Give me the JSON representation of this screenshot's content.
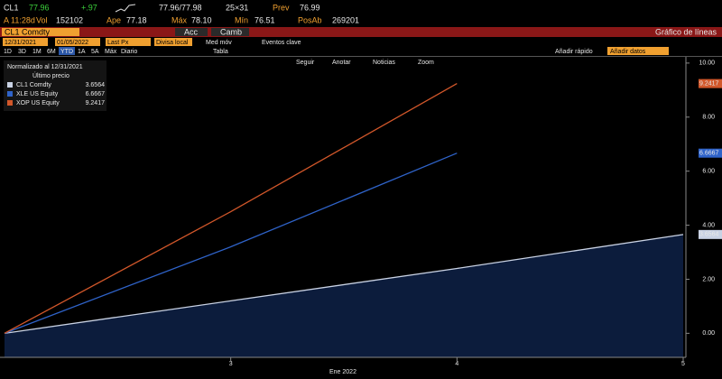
{
  "quote": {
    "ticker": "CL1",
    "last": "77.96",
    "change": "+.97",
    "bid_ask": "77.96/77.98",
    "size": "25×31",
    "prev_label": "Prev",
    "prev": "76.99",
    "time": "A 11:28d",
    "vol_label": "Vol",
    "vol": "152102",
    "open_label": "Ape",
    "open": "77.18",
    "high_label": "Máx",
    "high": "78.10",
    "low_label": "Mín",
    "low": "76.51",
    "oi_label": "PosAb",
    "oi": "269201"
  },
  "toolbar": {
    "security": "CL1 Comdty",
    "actions": "Acc",
    "change": "Camb",
    "view": "Gráfico de líneas",
    "start": "12/31/2021",
    "end": "01/05/2022",
    "field": "Last Px",
    "currency": "Divisa local",
    "moving_avg": "Med móv",
    "events": "Eventos clave",
    "periods": [
      "1D",
      "3D",
      "1M",
      "6M",
      "YTD",
      "1A",
      "5A",
      "Máx",
      "Diario"
    ],
    "table": "Tabla",
    "quick_add": "Añadir rápido",
    "add_data": "Añadir datos",
    "tools": [
      "Seguir",
      "Anotar",
      "Noticias",
      "Zoom"
    ]
  },
  "chart_data": {
    "type": "line",
    "legend_title": "Normalizado al 12/31/2021",
    "legend_subtitle": "Último precio",
    "x_label": "Ene 2022",
    "xlim": [
      2,
      5
    ],
    "xticks": [
      3,
      4,
      5
    ],
    "ylim": [
      -0.89,
      10.23
    ],
    "yticks": [
      {
        "value": 0,
        "label": "0.00"
      },
      {
        "value": 2,
        "label": "2.00"
      },
      {
        "value": 4,
        "label": "4.00"
      },
      {
        "value": 6,
        "label": "6.00"
      },
      {
        "value": 8,
        "label": "8.00"
      },
      {
        "value": 10,
        "label": "10.00"
      }
    ],
    "series": [
      {
        "name": "CL1 Comdty",
        "color": "#c9d2e4",
        "area_color": "#0c1c3c",
        "x": [
          2,
          3,
          4,
          5
        ],
        "values": [
          0,
          1.2,
          2.4,
          3.6564
        ]
      },
      {
        "name": "XLE US Equity",
        "color": "#2f63c9",
        "x": [
          2,
          3,
          4
        ],
        "values": [
          0,
          3.2,
          6.6667
        ]
      },
      {
        "name": "XOP US Equity",
        "color": "#d2572a",
        "x": [
          2,
          3,
          4
        ],
        "values": [
          0,
          4.5,
          9.2417
        ]
      }
    ]
  }
}
